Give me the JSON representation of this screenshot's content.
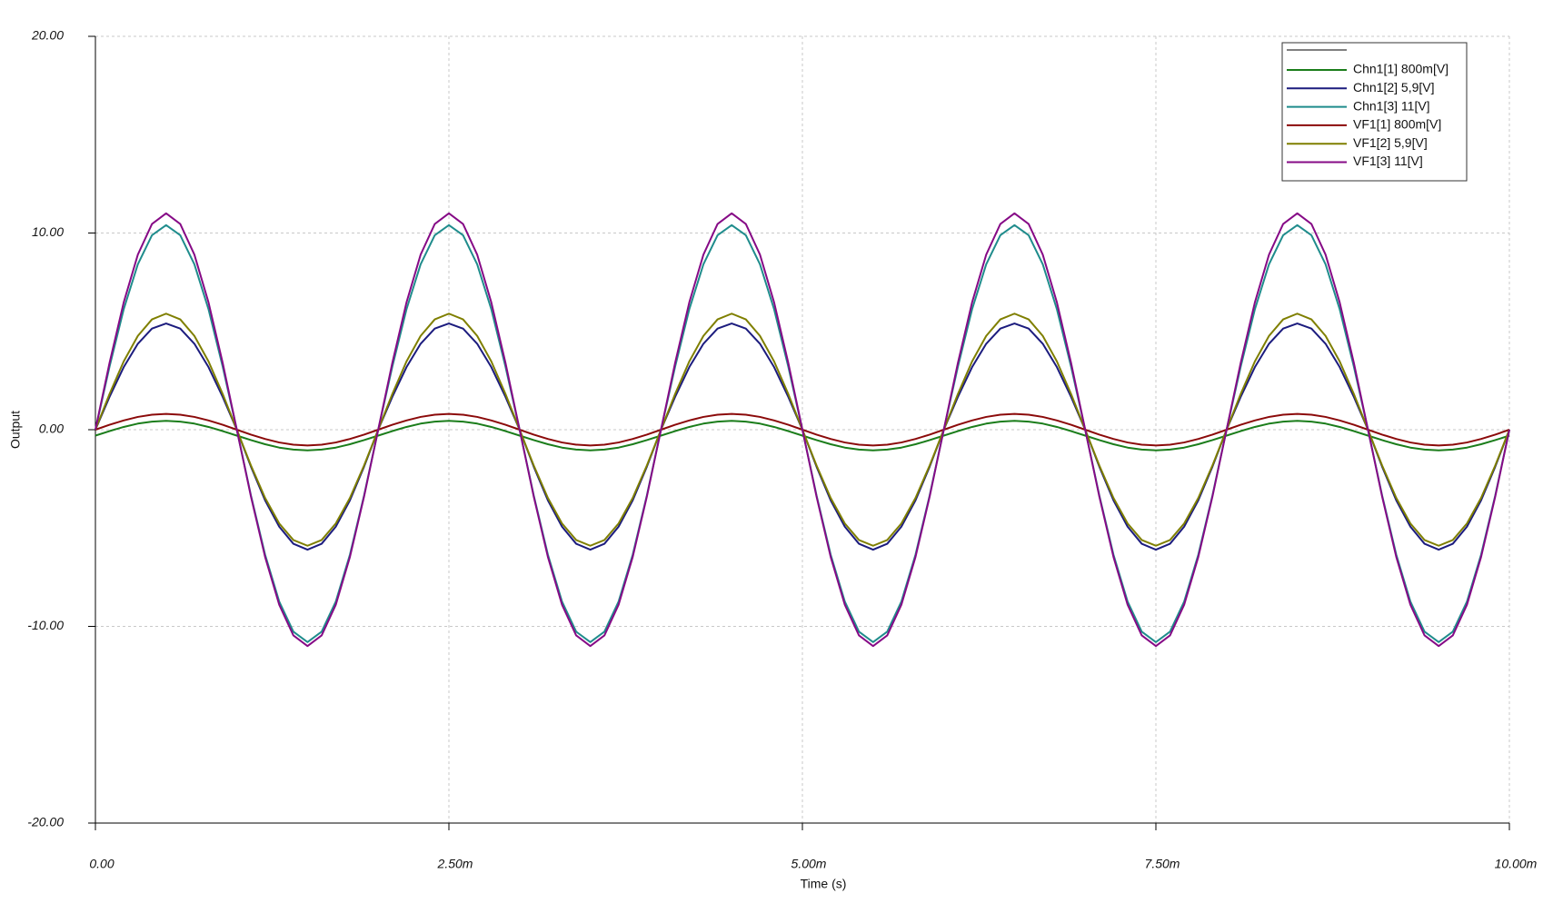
{
  "chart_data": {
    "type": "line",
    "x_label": "Time (s)",
    "y_label": "Output",
    "xlim": [
      0,
      0.01
    ],
    "ylim": [
      -20,
      20
    ],
    "xticks": [
      {
        "value": 0,
        "label": "0.00"
      },
      {
        "value": 0.0025,
        "label": "2.50m"
      },
      {
        "value": 0.005,
        "label": "5.00m"
      },
      {
        "value": 0.0075,
        "label": "7.50m"
      },
      {
        "value": 0.01,
        "label": "10.00m"
      }
    ],
    "yticks": [
      {
        "value": 20,
        "label": "20.00"
      },
      {
        "value": 10,
        "label": "10.00"
      },
      {
        "value": 0,
        "label": "0.00"
      },
      {
        "value": -10,
        "label": "-10.00"
      },
      {
        "value": -20,
        "label": "-20.00"
      }
    ],
    "grid": true,
    "legend": "upper right",
    "x": [
      0,
      0.0001,
      0.0002,
      0.0003,
      0.0004,
      0.0005,
      0.0006,
      0.0007,
      0.0008,
      0.0009,
      0.001,
      0.0011,
      0.0012,
      0.0013,
      0.0014,
      0.0015,
      0.0016,
      0.0017,
      0.0018,
      0.0019,
      0.002,
      0.0021,
      0.0022,
      0.0023,
      0.0024,
      0.0025,
      0.0026,
      0.0027,
      0.0028,
      0.0029,
      0.003,
      0.0031,
      0.0032,
      0.0033,
      0.0034,
      0.0035,
      0.0036,
      0.0037,
      0.0038,
      0.0039,
      0.004,
      0.0041,
      0.0042,
      0.0043,
      0.0044,
      0.0045,
      0.0046,
      0.0047,
      0.0048,
      0.0049,
      0.005,
      0.0051,
      0.0052,
      0.0053,
      0.0054,
      0.0055,
      0.0056,
      0.0057,
      0.0058,
      0.0059,
      0.006,
      0.0061,
      0.0062,
      0.0063,
      0.0064,
      0.0065,
      0.0066,
      0.0067,
      0.0068,
      0.0069,
      0.007,
      0.0071,
      0.0072,
      0.0073,
      0.0074,
      0.0075,
      0.0076,
      0.0077,
      0.0078,
      0.0079,
      0.008,
      0.0081,
      0.0082,
      0.0083,
      0.0084,
      0.0085,
      0.0086,
      0.0087,
      0.0088,
      0.0089,
      0.009,
      0.0091,
      0.0092,
      0.0093,
      0.0094,
      0.0095,
      0.0096,
      0.0097,
      0.0098,
      0.0099,
      0.01
    ],
    "series": [
      {
        "name": "Chn1[1]  800m[V]",
        "color": "#1b7d1b",
        "values": [
          -0.3,
          -0.07,
          0.14,
          0.31,
          0.41,
          0.45,
          0.41,
          0.31,
          0.14,
          -0.07,
          -0.3,
          -0.53,
          -0.74,
          -0.91,
          -1.01,
          -1.05,
          -1.01,
          -0.91,
          -0.74,
          -0.53,
          -0.3,
          -0.07,
          0.14,
          0.31,
          0.41,
          0.45,
          0.41,
          0.31,
          0.14,
          -0.07,
          -0.3,
          -0.53,
          -0.74,
          -0.91,
          -1.01,
          -1.05,
          -1.01,
          -0.91,
          -0.74,
          -0.53,
          -0.3,
          -0.07,
          0.14,
          0.31,
          0.41,
          0.45,
          0.41,
          0.31,
          0.14,
          -0.07,
          -0.3,
          -0.53,
          -0.74,
          -0.91,
          -1.01,
          -1.05,
          -1.01,
          -0.91,
          -0.74,
          -0.53,
          -0.3,
          -0.07,
          0.14,
          0.31,
          0.41,
          0.45,
          0.41,
          0.31,
          0.14,
          -0.07,
          -0.3,
          -0.53,
          -0.74,
          -0.91,
          -1.01,
          -1.05,
          -1.01,
          -0.91,
          -0.74,
          -0.53,
          -0.3,
          -0.07,
          0.14,
          0.31,
          0.41,
          0.45,
          0.41,
          0.31,
          0.14,
          -0.07,
          -0.3,
          -0.53,
          -0.74,
          -0.91,
          -1.01,
          -1.05,
          -1.01,
          -0.91,
          -0.74,
          -0.53,
          -0.3
        ]
      },
      {
        "name": "Chn1[2]  5,9[V]",
        "color": "#1c1c7e",
        "values": [
          0,
          1.67,
          3.18,
          4.37,
          5.14,
          5.4,
          5.14,
          4.37,
          3.18,
          1.67,
          0,
          -1.88,
          -3.59,
          -4.93,
          -5.8,
          -6.1,
          -5.8,
          -4.93,
          -3.59,
          -1.88,
          0,
          1.67,
          3.18,
          4.37,
          5.14,
          5.4,
          5.14,
          4.37,
          3.18,
          1.67,
          0,
          -1.88,
          -3.59,
          -4.93,
          -5.8,
          -6.1,
          -5.8,
          -4.93,
          -3.59,
          -1.88,
          0,
          1.67,
          3.18,
          4.37,
          5.14,
          5.4,
          5.14,
          4.37,
          3.18,
          1.67,
          0,
          -1.88,
          -3.59,
          -4.93,
          -5.8,
          -6.1,
          -5.8,
          -4.93,
          -3.59,
          -1.88,
          0,
          1.67,
          3.18,
          4.37,
          5.14,
          5.4,
          5.14,
          4.37,
          3.18,
          1.67,
          0,
          -1.88,
          -3.59,
          -4.93,
          -5.8,
          -6.1,
          -5.8,
          -4.93,
          -3.59,
          -1.88,
          0,
          1.67,
          3.18,
          4.37,
          5.14,
          5.4,
          5.14,
          4.37,
          3.18,
          1.67,
          0,
          -1.88,
          -3.59,
          -4.93,
          -5.8,
          -6.1,
          -5.8,
          -4.93,
          -3.59,
          -1.88,
          0
        ]
      },
      {
        "name": "Chn1[3]  11[V]",
        "color": "#1f8c8c",
        "values": [
          0,
          3.21,
          6.12,
          8.41,
          9.89,
          10.4,
          9.89,
          8.41,
          6.12,
          3.21,
          0,
          -3.34,
          -6.35,
          -8.74,
          -10.27,
          -10.8,
          -10.27,
          -8.74,
          -6.35,
          -3.34,
          0,
          3.21,
          6.12,
          8.41,
          9.89,
          10.4,
          9.89,
          8.41,
          6.12,
          3.21,
          0,
          -3.34,
          -6.35,
          -8.74,
          -10.27,
          -10.8,
          -10.27,
          -8.74,
          -6.35,
          -3.34,
          0,
          3.21,
          6.12,
          8.41,
          9.89,
          10.4,
          9.89,
          8.41,
          6.12,
          3.21,
          0,
          -3.34,
          -6.35,
          -8.74,
          -10.27,
          -10.8,
          -10.27,
          -8.74,
          -6.35,
          -3.34,
          0,
          3.21,
          6.12,
          8.41,
          9.89,
          10.4,
          9.89,
          8.41,
          6.12,
          3.21,
          0,
          -3.34,
          -6.35,
          -8.74,
          -10.27,
          -10.8,
          -10.27,
          -8.74,
          -6.35,
          -3.34,
          0,
          3.21,
          6.12,
          8.41,
          9.89,
          10.4,
          9.89,
          8.41,
          6.12,
          3.21,
          0,
          -3.34,
          -6.35,
          -8.74,
          -10.27,
          -10.8,
          -10.27,
          -8.74,
          -6.35,
          -3.34,
          0
        ]
      },
      {
        "name": "VF1[1]  800m[V]",
        "color": "#8b0a0a",
        "values": [
          0,
          0.25,
          0.47,
          0.65,
          0.76,
          0.8,
          0.76,
          0.65,
          0.47,
          0.25,
          0,
          -0.25,
          -0.47,
          -0.65,
          -0.76,
          -0.8,
          -0.76,
          -0.65,
          -0.47,
          -0.25,
          0,
          0.25,
          0.47,
          0.65,
          0.76,
          0.8,
          0.76,
          0.65,
          0.47,
          0.25,
          0,
          -0.25,
          -0.47,
          -0.65,
          -0.76,
          -0.8,
          -0.76,
          -0.65,
          -0.47,
          -0.25,
          0,
          0.25,
          0.47,
          0.65,
          0.76,
          0.8,
          0.76,
          0.65,
          0.47,
          0.25,
          0,
          -0.25,
          -0.47,
          -0.65,
          -0.76,
          -0.8,
          -0.76,
          -0.65,
          -0.47,
          -0.25,
          0,
          0.25,
          0.47,
          0.65,
          0.76,
          0.8,
          0.76,
          0.65,
          0.47,
          0.25,
          0,
          -0.25,
          -0.47,
          -0.65,
          -0.76,
          -0.8,
          -0.76,
          -0.65,
          -0.47,
          -0.25,
          0,
          0.25,
          0.47,
          0.65,
          0.76,
          0.8,
          0.76,
          0.65,
          0.47,
          0.25,
          0,
          -0.25,
          -0.47,
          -0.65,
          -0.76,
          -0.8,
          -0.76,
          -0.65,
          -0.47,
          -0.25,
          0
        ]
      },
      {
        "name": "VF1[2]  5,9[V]",
        "color": "#7f7f00",
        "values": [
          0,
          1.82,
          3.47,
          4.77,
          5.61,
          5.9,
          5.61,
          4.77,
          3.47,
          1.82,
          0,
          -1.82,
          -3.47,
          -4.77,
          -5.61,
          -5.9,
          -5.61,
          -4.77,
          -3.47,
          -1.82,
          0,
          1.82,
          3.47,
          4.77,
          5.61,
          5.9,
          5.61,
          4.77,
          3.47,
          1.82,
          0,
          -1.82,
          -3.47,
          -4.77,
          -5.61,
          -5.9,
          -5.61,
          -4.77,
          -3.47,
          -1.82,
          0,
          1.82,
          3.47,
          4.77,
          5.61,
          5.9,
          5.61,
          4.77,
          3.47,
          1.82,
          0,
          -1.82,
          -3.47,
          -4.77,
          -5.61,
          -5.9,
          -5.61,
          -4.77,
          -3.47,
          -1.82,
          0,
          1.82,
          3.47,
          4.77,
          5.61,
          5.9,
          5.61,
          4.77,
          3.47,
          1.82,
          0,
          -1.82,
          -3.47,
          -4.77,
          -5.61,
          -5.9,
          -5.61,
          -4.77,
          -3.47,
          -1.82,
          0,
          1.82,
          3.47,
          4.77,
          5.61,
          5.9,
          5.61,
          4.77,
          3.47,
          1.82,
          0,
          -1.82,
          -3.47,
          -4.77,
          -5.61,
          -5.9,
          -5.61,
          -4.77,
          -3.47,
          -1.82,
          0
        ]
      },
      {
        "name": "VF1[3]  11[V]",
        "color": "#860a86",
        "values": [
          0,
          3.4,
          6.47,
          8.9,
          10.46,
          11,
          10.46,
          8.9,
          6.47,
          3.4,
          0,
          -3.4,
          -6.47,
          -8.9,
          -10.46,
          -11,
          -10.46,
          -8.9,
          -6.47,
          -3.4,
          0,
          3.4,
          6.47,
          8.9,
          10.46,
          11,
          10.46,
          8.9,
          6.47,
          3.4,
          0,
          -3.4,
          -6.47,
          -8.9,
          -10.46,
          -11,
          -10.46,
          -8.9,
          -6.47,
          -3.4,
          0,
          3.4,
          6.47,
          8.9,
          10.46,
          11,
          10.46,
          8.9,
          6.47,
          3.4,
          0,
          -3.4,
          -6.47,
          -8.9,
          -10.46,
          -11,
          -10.46,
          -8.9,
          -6.47,
          -3.4,
          0,
          3.4,
          6.47,
          8.9,
          10.46,
          11,
          10.46,
          8.9,
          6.47,
          3.4,
          0,
          -3.4,
          -6.47,
          -8.9,
          -10.46,
          -11,
          -10.46,
          -8.9,
          -6.47,
          -3.4,
          0,
          3.4,
          6.47,
          8.9,
          10.46,
          11,
          10.46,
          8.9,
          6.47,
          3.4,
          0,
          -3.4,
          -6.47,
          -8.9,
          -10.46,
          -11,
          -10.46,
          -8.9,
          -6.47,
          -3.4,
          0
        ]
      }
    ]
  }
}
